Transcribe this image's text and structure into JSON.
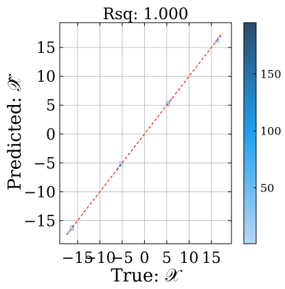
{
  "chart_data": {
    "type": "heatmap",
    "title": "Rsq: 1.000",
    "xlabel": "True: 𝒳",
    "ylabel": "Predicted: 𝒳̂",
    "xlim": [
      -19,
      19.5
    ],
    "ylim": [
      -19,
      19.3
    ],
    "xticks": [
      -15,
      -10,
      -5,
      0,
      5,
      10,
      15
    ],
    "xtick_labels": [
      "−15",
      "−10",
      "−5",
      "0",
      "5",
      "10",
      "15"
    ],
    "yticks": [
      -15,
      -10,
      -5,
      0,
      5,
      10,
      15
    ],
    "ytick_labels": [
      "−15",
      "−10",
      "−5",
      "0",
      "5",
      "10",
      "15"
    ],
    "grid": true,
    "reference_line": {
      "style": "dashed",
      "color": "#ff0000",
      "from": [
        -17.5,
        -17.5
      ],
      "to": [
        17.5,
        17.5
      ]
    },
    "colorbar": {
      "min": 1,
      "max": 195,
      "ticks": [
        50,
        100,
        150
      ],
      "tick_labels": [
        "50",
        "100",
        "150"
      ],
      "colors": [
        "#b8d6f5",
        "#1fa0f0",
        "#2c4b6a"
      ]
    },
    "bins": [
      {
        "x": -16.5,
        "y": -16.5,
        "count": 5
      },
      {
        "x": -16,
        "y": -16,
        "count": 25
      },
      {
        "x": -16.5,
        "y": -16,
        "count": 8
      },
      {
        "x": -16,
        "y": -16.5,
        "count": 10
      },
      {
        "x": -17,
        "y": -17,
        "count": 15
      },
      {
        "x": -5.5,
        "y": -5.5,
        "count": 10
      },
      {
        "x": -5,
        "y": -5,
        "count": 20
      },
      {
        "x": -6,
        "y": -6,
        "count": 15
      },
      {
        "x": -5.5,
        "y": -5,
        "count": 8
      },
      {
        "x": -5,
        "y": -5.5,
        "count": 6
      },
      {
        "x": 5,
        "y": 5,
        "count": 10
      },
      {
        "x": 5.5,
        "y": 5.5,
        "count": 20
      },
      {
        "x": 6,
        "y": 6,
        "count": 10
      },
      {
        "x": 5,
        "y": 5.5,
        "count": 8
      },
      {
        "x": 5.5,
        "y": 5,
        "count": 6
      },
      {
        "x": 16.5,
        "y": 16.5,
        "count": 30
      },
      {
        "x": 17,
        "y": 17,
        "count": 10
      },
      {
        "x": 16,
        "y": 16,
        "count": 12
      },
      {
        "x": 16.5,
        "y": 16,
        "count": 8
      }
    ]
  }
}
